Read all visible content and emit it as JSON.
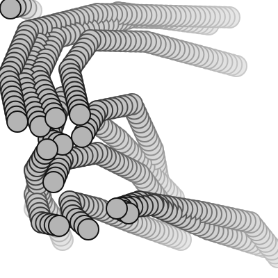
{
  "artwork": {
    "subject": "trailing-circle-strokes",
    "colors": {
      "background": "#ffffff",
      "circle_fill": "#b4b4b4",
      "stroke_dark": "#111111",
      "stroke_fade": "#c8c8c8"
    },
    "trail_count": 12
  }
}
